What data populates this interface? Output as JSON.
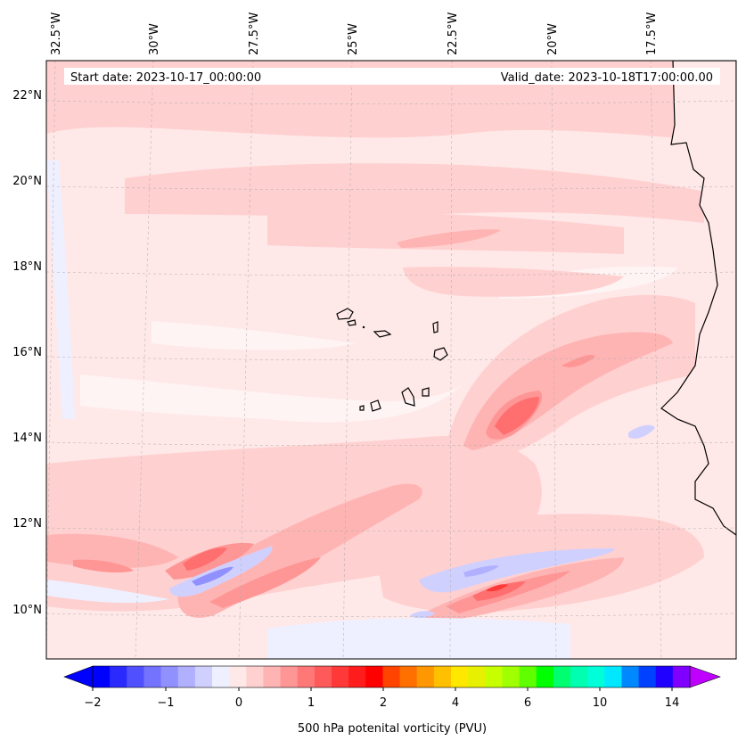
{
  "header": {
    "start_date": "Start date: 2023-10-17_00:00:00",
    "valid_date": "Valid_date: 2023-10-18T17:00:00.00"
  },
  "map": {
    "lon_labels": [
      "32.5°W",
      "30°W",
      "27.5°W",
      "25°W",
      "22.5°W",
      "20°W",
      "17.5°W"
    ],
    "lat_labels": [
      "22°N",
      "20°N",
      "18°N",
      "16°N",
      "14°N",
      "12°N",
      "10°N"
    ]
  },
  "colorbar": {
    "label": "500 hPa potenital vorticity (PVU)",
    "tick_labels": [
      "−2",
      "−1",
      "0",
      "1",
      "2",
      "4",
      "6",
      "10",
      "14"
    ],
    "colors": [
      "#0000ff",
      "#2a2aff",
      "#5050ff",
      "#7373ff",
      "#9090ff",
      "#b0b0ff",
      "#d0d0ff",
      "#eef0ff",
      "#ffe8e8",
      "#ffd0d0",
      "#ffb4b4",
      "#ff9696",
      "#ff7878",
      "#ff5a5a",
      "#ff3838",
      "#ff1c1c",
      "#ff0000",
      "#ff4400",
      "#ff7000",
      "#ff9800",
      "#ffc000",
      "#ffe800",
      "#e6f000",
      "#c8ff00",
      "#a0ff00",
      "#60ff00",
      "#00ff00",
      "#00ff70",
      "#00ffb0",
      "#00ffd8",
      "#00e8ff",
      "#0088ff",
      "#0040ff",
      "#2000ff",
      "#8000ff"
    ],
    "under_color": "#0000ff",
    "over_color": "#c000ff"
  }
}
